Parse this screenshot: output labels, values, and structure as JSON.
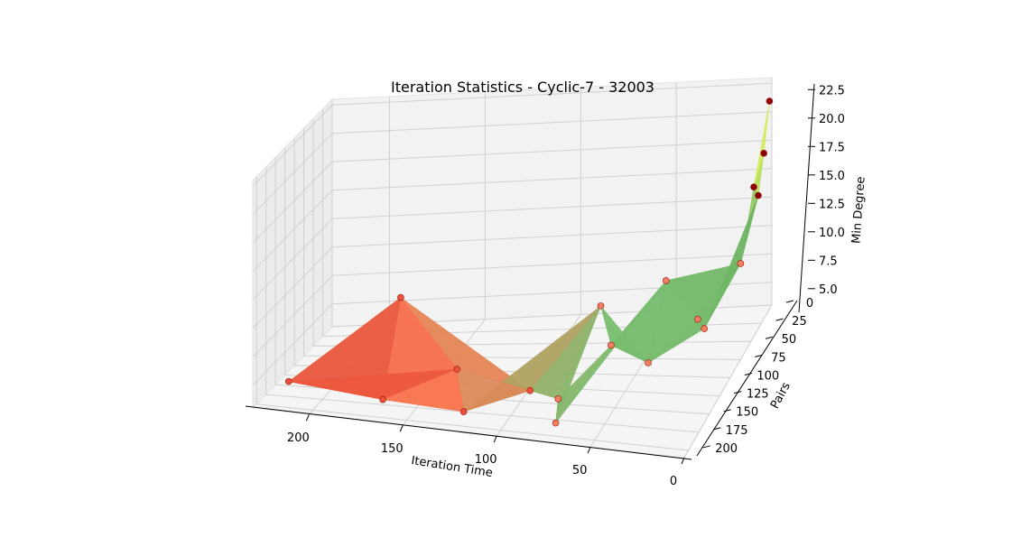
{
  "chart_data": {
    "type": "surface3d",
    "title": "Iteration Statistics - Cyclic-7 - 32003",
    "xlabel": "Iteration Time",
    "ylabel": "Pairs",
    "zlabel": "Min Degree",
    "xlim": [
      0,
      230
    ],
    "ylim": [
      0,
      210
    ],
    "zlim": [
      3,
      23
    ],
    "x_ticks": [
      0,
      50,
      100,
      150,
      200
    ],
    "y_ticks": [
      0,
      25,
      50,
      75,
      100,
      125,
      150,
      175,
      200
    ],
    "z_ticks": [
      5.0,
      7.5,
      10.0,
      12.5,
      15.0,
      17.5,
      20.0,
      22.5
    ],
    "x_tick_labels": [
      "0",
      "50",
      "100",
      "150",
      "200"
    ],
    "y_tick_labels": [
      "0",
      "25",
      "50",
      "75",
      "100",
      "125",
      "150",
      "175",
      "200"
    ],
    "z_tick_labels": [
      "5.0",
      "7.5",
      "10.0",
      "12.5",
      "15.0",
      "17.5",
      "20.0",
      "22.5"
    ],
    "grid": true,
    "colormap": "RdYlGn",
    "points": [
      {
        "x": 225,
        "y": 140,
        "z": 3
      },
      {
        "x": 180,
        "y": 70,
        "z": 8
      },
      {
        "x": 170,
        "y": 165,
        "z": 3
      },
      {
        "x": 140,
        "y": 120,
        "z": 4
      },
      {
        "x": 125,
        "y": 175,
        "z": 3
      },
      {
        "x": 95,
        "y": 150,
        "z": 4
      },
      {
        "x": 80,
        "y": 45,
        "z": 6
      },
      {
        "x": 78,
        "y": 160,
        "z": 4
      },
      {
        "x": 75,
        "y": 180,
        "z": 3
      },
      {
        "x": 65,
        "y": 90,
        "z": 5
      },
      {
        "x": 50,
        "y": 25,
        "z": 7
      },
      {
        "x": 40,
        "y": 115,
        "z": 5
      },
      {
        "x": 28,
        "y": 50,
        "z": 5
      },
      {
        "x": 18,
        "y": 80,
        "z": 6
      },
      {
        "x": 12,
        "y": 20,
        "z": 8
      },
      {
        "x": 6,
        "y": 5,
        "z": 13
      },
      {
        "x": 4,
        "y": 25,
        "z": 15
      },
      {
        "x": 2,
        "y": 10,
        "z": 17
      },
      {
        "x": 1,
        "y": 1,
        "z": 21
      }
    ]
  },
  "colors": {
    "pane": "#f2f2f2",
    "pane_edge": "#e4e4e4",
    "grid": "#d0d0d0",
    "axis_line": "#000000"
  }
}
